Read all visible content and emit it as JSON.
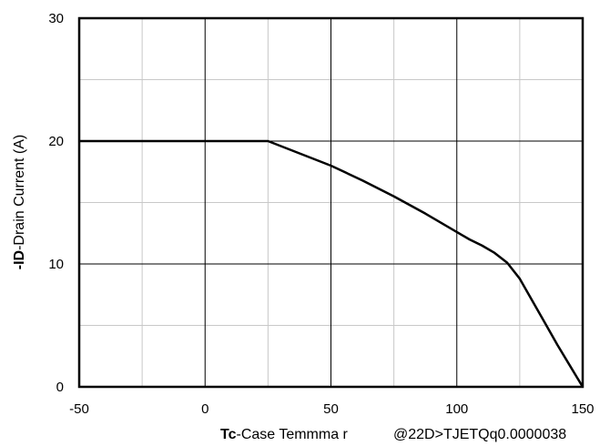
{
  "chart_data": {
    "type": "line",
    "title": "",
    "xlabel": {
      "bold": "Tc",
      "rest": "-Case Temmma r",
      "trailing_garble": "@22D>TJETQq0.0000038"
    },
    "ylabel": {
      "bold": "-ID",
      "rest": "-Drain Current  (A)"
    },
    "xlim": [
      -50,
      150
    ],
    "ylim": [
      0,
      30
    ],
    "x_ticks": [
      "-50",
      "0",
      "50",
      "100",
      "150"
    ],
    "y_ticks": [
      "0",
      "10",
      "20",
      "30"
    ],
    "x_major_values": [
      -50,
      0,
      50,
      100,
      150
    ],
    "x_minor_values": [
      -25,
      25,
      75,
      125
    ],
    "y_major_values": [
      0,
      10,
      20,
      30
    ],
    "y_minor_values": [
      5,
      15,
      25
    ],
    "grid": true,
    "series": [
      {
        "x": [
          -50,
          25,
          37.5,
          50,
          62.5,
          75,
          87.5,
          100,
          105,
          110,
          115,
          120,
          125,
          130,
          135,
          140,
          145,
          150
        ],
        "y": [
          20,
          20,
          19.0,
          18.0,
          16.8,
          15.5,
          14.1,
          12.6,
          12.0,
          11.5,
          10.9,
          10.1,
          8.8,
          7.0,
          5.2,
          3.4,
          1.7,
          0
        ]
      }
    ]
  }
}
